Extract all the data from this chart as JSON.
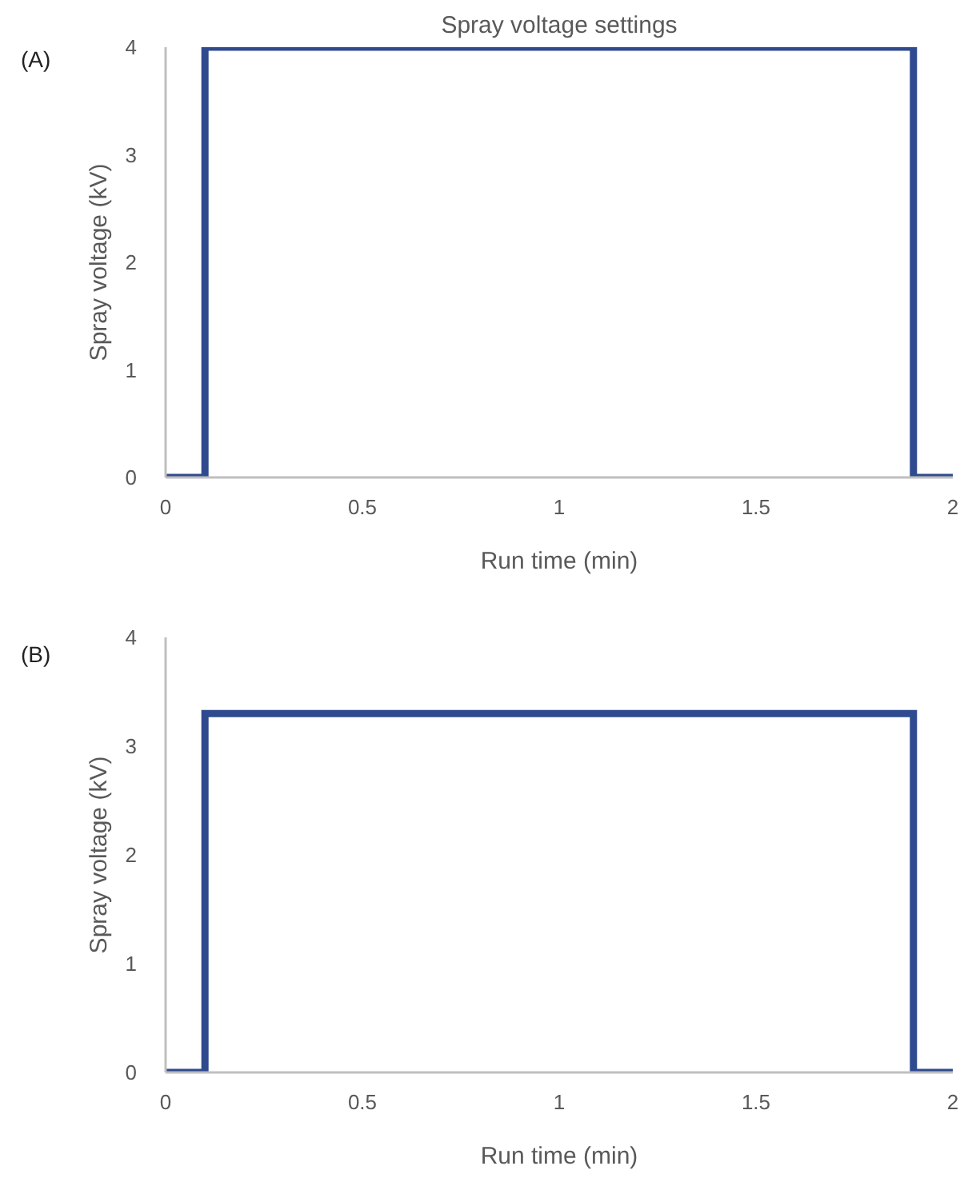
{
  "chart_data": [
    {
      "type": "line",
      "title": "Spray voltage settings",
      "xlabel": "Run time (min)",
      "ylabel": "Spray voltage (kV)",
      "annotations": [
        "(A)"
      ],
      "x": [
        0,
        0.1,
        0.1,
        1.9,
        1.9,
        2
      ],
      "series": [
        {
          "color": "#2f4a8e",
          "values": [
            0,
            0,
            4,
            4,
            0,
            0
          ]
        }
      ],
      "xlim": [
        0,
        2
      ],
      "ylim": [
        0,
        4
      ],
      "xticks": [
        0,
        0.5,
        1,
        1.5,
        2
      ],
      "yticks": [
        0,
        1,
        2,
        3,
        4
      ],
      "grid": false
    },
    {
      "type": "line",
      "xlabel": "Run time (min)",
      "ylabel": "Spray voltage (kV)",
      "annotations": [
        "(B)"
      ],
      "x": [
        0,
        0.1,
        0.1,
        1.9,
        1.9,
        2
      ],
      "series": [
        {
          "color": "#2f4a8e",
          "values": [
            0,
            0,
            3.3,
            3.3,
            0,
            0
          ]
        }
      ],
      "xlim": [
        0,
        2
      ],
      "ylim": [
        0,
        4
      ],
      "xticks": [
        0,
        0.5,
        1,
        1.5,
        2
      ],
      "yticks": [
        0,
        1,
        2,
        3,
        4
      ],
      "grid": false
    }
  ]
}
